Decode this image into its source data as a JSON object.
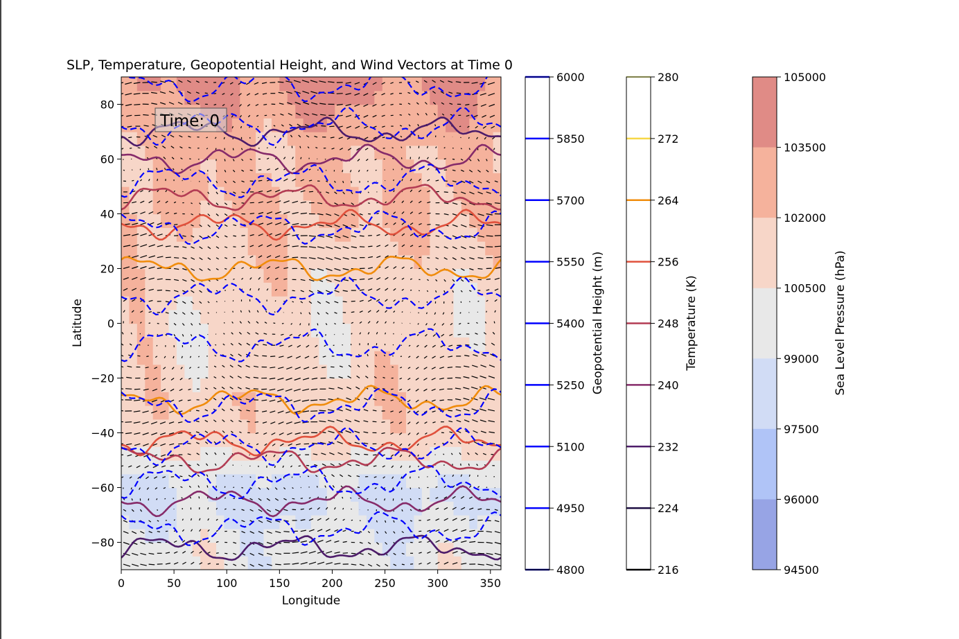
{
  "chart_data": {
    "type": "heatmap",
    "title": "SLP, Temperature, Geopotential Height, and Wind Vectors at Time 0",
    "xlabel": "Longitude",
    "ylabel": "Latitude",
    "xlim": [
      0,
      360
    ],
    "ylim": [
      -90,
      90
    ],
    "xticks": [
      0,
      50,
      100,
      150,
      200,
      250,
      300,
      350
    ],
    "yticks": [
      -80,
      -60,
      -40,
      -20,
      0,
      20,
      40,
      60,
      80
    ],
    "annotation": "Time: 0",
    "slp_zonal_profile": [
      {
        "lat": -90,
        "slp": 99800
      },
      {
        "lat": -80,
        "slp": 99700
      },
      {
        "lat": -70,
        "slp": 98800
      },
      {
        "lat": -60,
        "slp": 98500
      },
      {
        "lat": -50,
        "slp": 100300
      },
      {
        "lat": -40,
        "slp": 101400
      },
      {
        "lat": -30,
        "slp": 101600
      },
      {
        "lat": -20,
        "slp": 101300
      },
      {
        "lat": -10,
        "slp": 101000
      },
      {
        "lat": 0,
        "slp": 100900
      },
      {
        "lat": 10,
        "slp": 101100
      },
      {
        "lat": 20,
        "slp": 101400
      },
      {
        "lat": 30,
        "slp": 101800
      },
      {
        "lat": 40,
        "slp": 102200
      },
      {
        "lat": 50,
        "slp": 102300
      },
      {
        "lat": 60,
        "slp": 102000
      },
      {
        "lat": 70,
        "slp": 102800
      },
      {
        "lat": 80,
        "slp": 103400
      },
      {
        "lat": 90,
        "slp": 103900
      }
    ],
    "temperature_contours": [
      {
        "level": 264,
        "color": "#f08c0c",
        "lat": 20
      },
      {
        "level": 264,
        "color": "#f08c0c",
        "lat": -28
      },
      {
        "level": 256,
        "color": "#e0503c",
        "lat": 36
      },
      {
        "level": 256,
        "color": "#e0503c",
        "lat": -43
      },
      {
        "level": 248,
        "color": "#b33c54",
        "lat": 46
      },
      {
        "level": 248,
        "color": "#b33c54",
        "lat": -50
      },
      {
        "level": 240,
        "color": "#862b6a",
        "lat": 60
      },
      {
        "level": 240,
        "color": "#862b6a",
        "lat": -65
      },
      {
        "level": 232,
        "color": "#4d1c6a",
        "lat": 70
      },
      {
        "level": 232,
        "color": "#4d1c6a",
        "lat": -82
      }
    ],
    "geopotential_contours": [
      {
        "lat": 87
      },
      {
        "lat": 72
      },
      {
        "lat": 52
      },
      {
        "lat": 35
      },
      {
        "lat": 10
      },
      {
        "lat": -8
      },
      {
        "lat": -30
      },
      {
        "lat": -45
      },
      {
        "lat": -58
      },
      {
        "lat": -75
      }
    ],
    "colorbars": [
      {
        "label": "Geopotential Height (m)",
        "ticks": [
          "6000",
          "5850",
          "5700",
          "5550",
          "5400",
          "5250",
          "5100",
          "4950",
          "4800"
        ],
        "line_colors": [
          "#0000ff",
          "#0000ff",
          "#0000ff",
          "#0000ff",
          "#0000ff",
          "#0000ff",
          "#0000ff",
          "#0000ff",
          "#00008b"
        ]
      },
      {
        "label": "Temperature (K)",
        "ticks": [
          "280",
          "272",
          "264",
          "256",
          "248",
          "240",
          "232",
          "224",
          "216"
        ],
        "line_colors": [
          "#fcffa4",
          "#f6d746",
          "#f08c0c",
          "#e0503c",
          "#b33c54",
          "#862b6a",
          "#4d1c6a",
          "#1b0c41",
          "#000004"
        ]
      },
      {
        "label": "Sea Level Pressure (hPa)",
        "ticks": [
          "105000",
          "103500",
          "102000",
          "100500",
          "99000",
          "97500",
          "96000",
          "94500"
        ],
        "fill_colors": [
          "#e08b86",
          "#f5b29c",
          "#f7d6c8",
          "#e8e8e8",
          "#d1dcf5",
          "#b0c4f7",
          "#97a4e5"
        ]
      }
    ],
    "slp_levels": [
      94500,
      96000,
      97500,
      99000,
      100500,
      102000,
      103500,
      105000
    ],
    "slp_colors": [
      "#97a4e5",
      "#b0c4f7",
      "#d1dcf5",
      "#e8e8e8",
      "#f7d6c8",
      "#f5b29c",
      "#e08b86"
    ]
  }
}
